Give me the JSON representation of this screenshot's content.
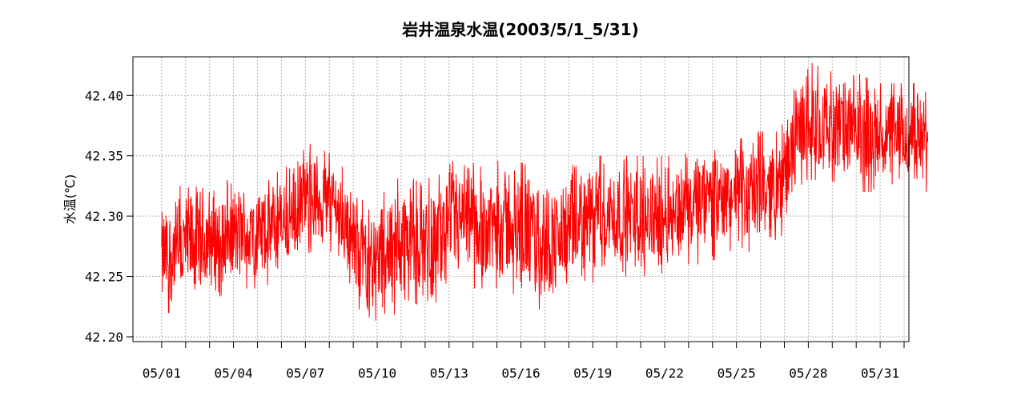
{
  "chart_data": {
    "type": "line",
    "title": "岩井温泉水温(2003/5/1_5/31)",
    "ylabel": "水温(℃)",
    "xlabel": "",
    "ylim": [
      42.196,
      42.432
    ],
    "y_ticks": [
      42.2,
      42.25,
      42.3,
      42.35,
      42.4
    ],
    "y_tick_labels": [
      "42.20",
      "42.25",
      "42.30",
      "42.35",
      "42.40"
    ],
    "x_range_days": [
      -1.2,
      31.2
    ],
    "x_tick_labels": [
      "05/01",
      "05/04",
      "05/07",
      "05/10",
      "05/13",
      "05/16",
      "05/19",
      "05/22",
      "05/25",
      "05/28",
      "05/31"
    ],
    "grid": true,
    "series_color": "#ff0000",
    "series": [
      {
        "x": [
          1,
          2,
          3,
          4,
          5,
          6,
          7,
          8,
          9,
          10,
          11,
          12,
          13,
          14,
          15,
          16,
          17,
          18,
          19,
          20,
          21,
          22,
          23,
          24,
          25,
          26,
          27,
          28,
          29,
          30,
          31,
          32
        ],
        "min": [
          42.22,
          42.22,
          42.23,
          42.24,
          42.24,
          42.25,
          42.27,
          42.27,
          42.22,
          42.21,
          42.23,
          42.22,
          42.24,
          42.24,
          42.24,
          42.22,
          42.23,
          42.24,
          42.25,
          42.25,
          42.25,
          42.26,
          42.26,
          42.27,
          42.27,
          42.28,
          42.33,
          42.33,
          42.32,
          42.32,
          42.32,
          42.32
        ],
        "max": [
          42.31,
          42.33,
          42.33,
          42.33,
          42.33,
          42.34,
          42.36,
          42.35,
          42.32,
          42.32,
          42.34,
          42.33,
          42.35,
          42.34,
          42.35,
          42.34,
          42.33,
          42.35,
          42.35,
          42.35,
          42.35,
          42.35,
          42.36,
          42.36,
          42.37,
          42.37,
          42.43,
          42.42,
          42.42,
          42.41,
          42.41,
          42.41
        ]
      }
    ]
  }
}
